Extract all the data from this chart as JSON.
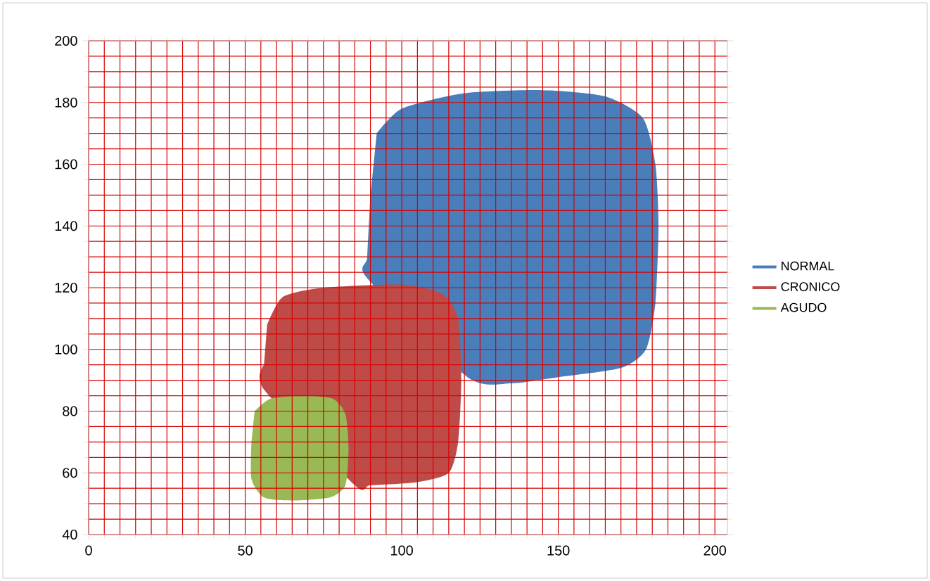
{
  "chart_data": {
    "type": "area",
    "xlim": [
      0,
      204
    ],
    "ylim": [
      40,
      200
    ],
    "xticks": [
      0,
      50,
      100,
      150,
      200
    ],
    "yticks": [
      40,
      60,
      80,
      100,
      120,
      140,
      160,
      180,
      200
    ],
    "grid": true,
    "legend": "right",
    "series": [
      {
        "name": "NORMAL",
        "color": "#4a7ebb",
        "x": [
          92,
          100,
          120,
          145,
          165,
          177,
          181,
          182,
          181,
          178,
          170,
          150,
          135,
          121,
          89,
          89,
          90
        ],
        "values": [
          170,
          178,
          183,
          184,
          182,
          175,
          160,
          140,
          115,
          100,
          94,
          91,
          89,
          91,
          123,
          130,
          150
        ]
      },
      {
        "name": "CRONICO",
        "color": "#be4b48",
        "x": [
          57,
          62,
          75,
          100,
          113,
          118,
          119,
          118,
          115,
          105,
          90,
          85,
          56,
          56
        ],
        "values": [
          108,
          117,
          120,
          121,
          118,
          110,
          90,
          70,
          60,
          57,
          56,
          56,
          87,
          95
        ]
      },
      {
        "name": "AGUDO",
        "color": "#98b954",
        "x": [
          53,
          58,
          68,
          78,
          82,
          83,
          82,
          77,
          65,
          56,
          52,
          52
        ],
        "values": [
          80,
          84,
          85,
          84,
          79,
          68,
          56,
          52,
          51,
          52,
          58,
          70
        ]
      }
    ]
  }
}
